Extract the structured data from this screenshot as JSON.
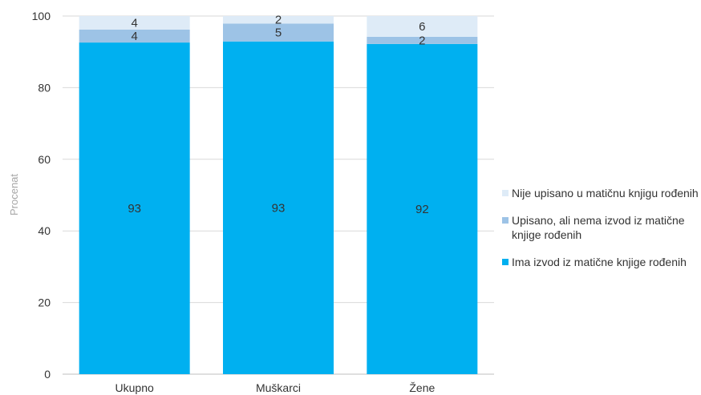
{
  "chart_data": {
    "type": "bar",
    "stacked": true,
    "categories": [
      "Ukupno",
      "Muškarci",
      "Žene"
    ],
    "series": [
      {
        "name": "Ima izvod iz matične knjige rođenih",
        "values": [
          93,
          93,
          92
        ],
        "actual": [
          92.6,
          92.9,
          92.2
        ],
        "color": "#00b0f0"
      },
      {
        "name": "Upisano, ali nema izvod iz matične knjige rođenih",
        "values": [
          4,
          5,
          2
        ],
        "actual": [
          3.6,
          5.0,
          2.0
        ],
        "color": "#9dc3e6"
      },
      {
        "name": "Nije upisano u matičnu knjigu rođenih",
        "values": [
          4,
          2,
          6
        ],
        "actual": [
          3.8,
          2.1,
          5.8
        ],
        "color": "#deebf7"
      }
    ],
    "title": "",
    "xlabel": "",
    "ylabel": "Procenat",
    "ylim": [
      0,
      100
    ],
    "yticks": [
      0,
      20,
      40,
      60,
      80,
      100
    ],
    "grid": true,
    "legend": "right"
  }
}
